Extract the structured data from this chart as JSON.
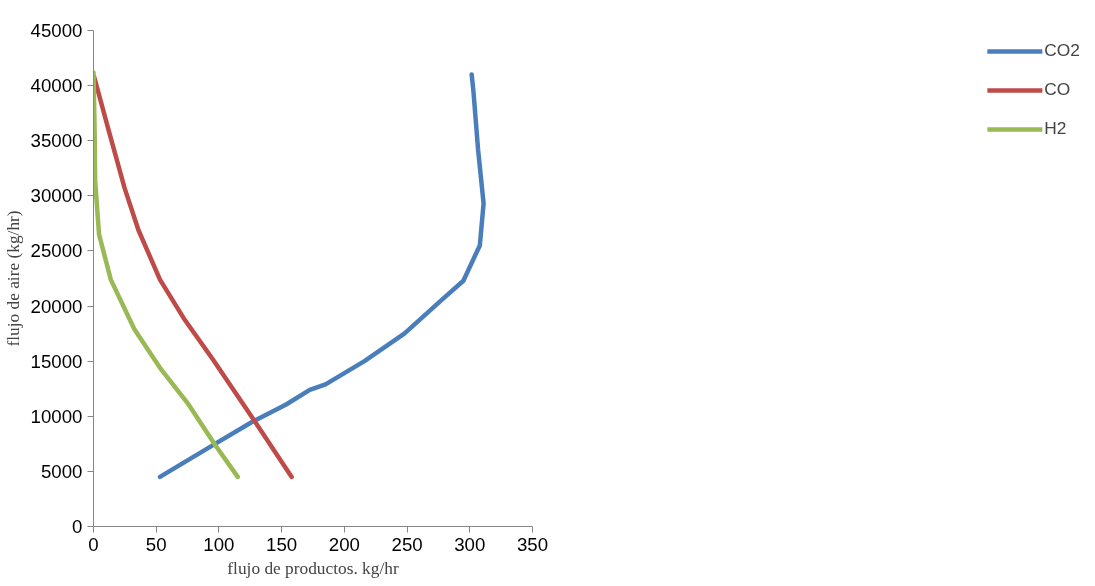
{
  "chart_data": {
    "type": "line",
    "xlabel": "flujo de productos. kg/hr",
    "ylabel": "flujo de aire (kg/hr)",
    "xlim": [
      0,
      350
    ],
    "xticks": [
      0,
      50,
      100,
      150,
      200,
      250,
      300,
      350
    ],
    "ylim": [
      0,
      45000
    ],
    "yticks": [
      0,
      5000,
      10000,
      15000,
      20000,
      25000,
      30000,
      35000,
      40000,
      45000
    ],
    "grid": false,
    "legend": "right",
    "marker": "none",
    "line_style": "solid",
    "series": [
      {
        "name": "CO2",
        "color": "#4a7ebb",
        "x": [
          53,
          95.6,
          126.7,
          153.6,
          172.4,
          185,
          216,
          247.8,
          279,
          294.9,
          308,
          311,
          306.6,
          302.9,
          301.5
        ],
        "values": [
          4500,
          7400,
          9500,
          11070,
          12400,
          12900,
          15000,
          17500,
          20700,
          22300,
          25500,
          29300,
          34200,
          39500,
          41000
        ]
      },
      {
        "name": "CO",
        "color": "#be4b48",
        "x": [
          158,
          126.8,
          95.5,
          71.9,
          53,
          35.8,
          24.8,
          12.2,
          0.5
        ],
        "values": [
          4500,
          9850,
          15100,
          18900,
          22400,
          26900,
          30700,
          35900,
          40800
        ]
      },
      {
        "name": "H2",
        "color": "#98b954",
        "x": [
          115,
          97,
          75,
          53,
          32.6,
          13.8,
          4.4,
          1.3,
          0.9,
          0
        ],
        "values": [
          4500,
          7400,
          11200,
          14400,
          17900,
          22400,
          26500,
          31400,
          35900,
          41200
        ]
      }
    ]
  }
}
